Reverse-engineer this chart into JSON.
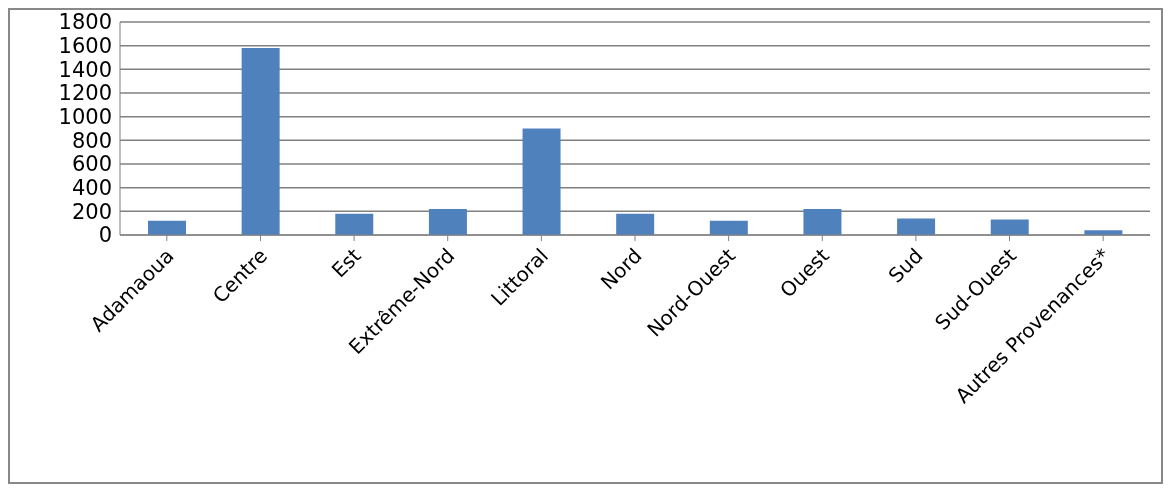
{
  "chart_data": {
    "type": "bar",
    "categories": [
      "Adamaoua",
      "Centre",
      "Est",
      "Extrême-Nord",
      "Littoral",
      "Nord",
      "Nord-Ouest",
      "Ouest",
      "Sud",
      "Sud-Ouest",
      "Autres Provenances*"
    ],
    "values": [
      120,
      1580,
      180,
      220,
      900,
      180,
      120,
      220,
      140,
      130,
      40
    ],
    "color": "#4f81bd",
    "ylim": [
      0,
      1800
    ],
    "yticks": [
      0,
      200,
      400,
      600,
      800,
      1000,
      1200,
      1400,
      1600,
      1800
    ],
    "grid": "y"
  }
}
